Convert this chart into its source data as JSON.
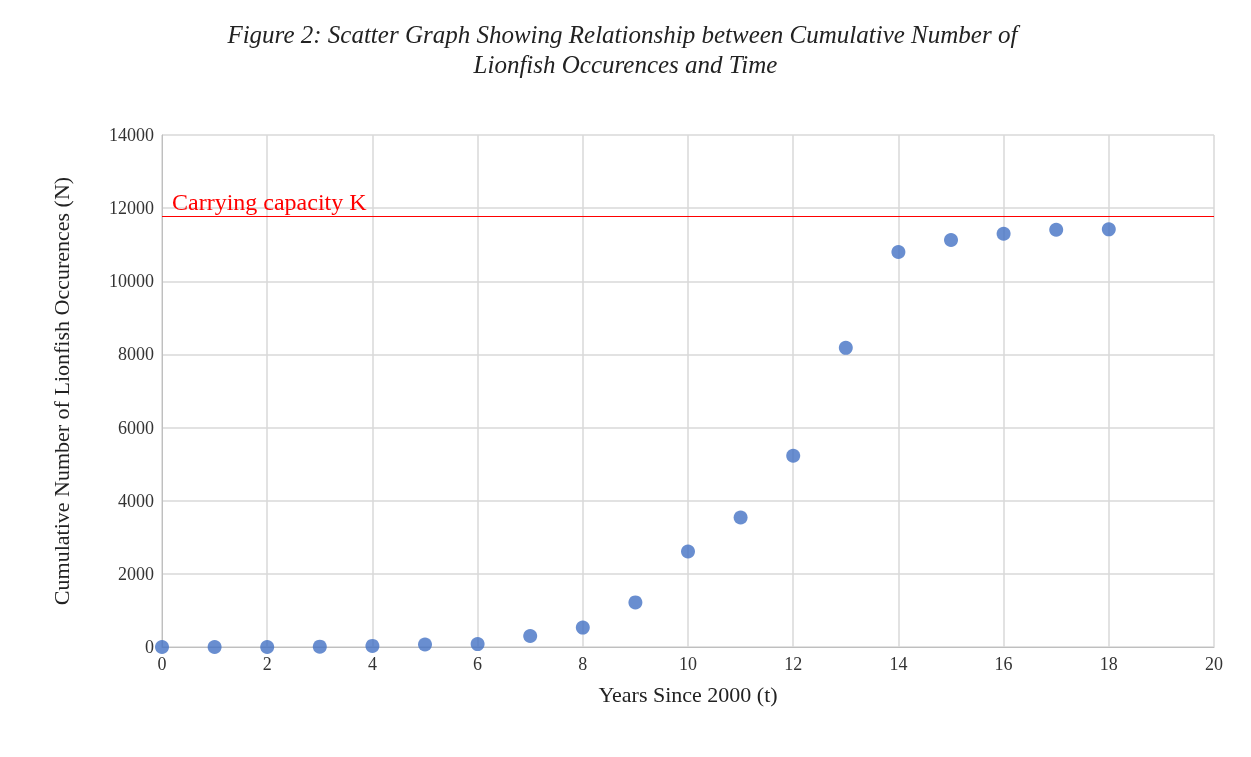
{
  "chart_data": {
    "type": "scatter",
    "title": "Figure 2: Scatter Graph Showing Relationship between Cumulative Number of Lionfish Occurences and Time",
    "xlabel": "Years Since 2000 (t)",
    "ylabel": "Cumulative Number of Lionfish Occurences (N)",
    "x": [
      0,
      1,
      2,
      3,
      4,
      5,
      6,
      7,
      8,
      9,
      10,
      11,
      12,
      13,
      14,
      15,
      16,
      17,
      18
    ],
    "series": [
      {
        "color": "#4472c4",
        "values": [
          0,
          0,
          0,
          10,
          30,
          70,
          80,
          300,
          530,
          1220,
          2610,
          3540,
          5230,
          8180,
          10800,
          11130,
          11300,
          11410,
          11420
        ]
      }
    ],
    "xlim": [
      0,
      20
    ],
    "xticks": [
      0,
      2,
      4,
      6,
      8,
      10,
      12,
      14,
      16,
      18,
      20
    ],
    "ylim": [
      0,
      14000
    ],
    "yticks": [
      0,
      2000,
      4000,
      6000,
      8000,
      10000,
      12000,
      14000
    ],
    "grid": true,
    "marker": "circle",
    "ref_lines": [
      {
        "axis": "y",
        "value": 11790,
        "label": "Carrying capacity K",
        "color": "#ff0000",
        "line_style": "solid"
      }
    ]
  }
}
